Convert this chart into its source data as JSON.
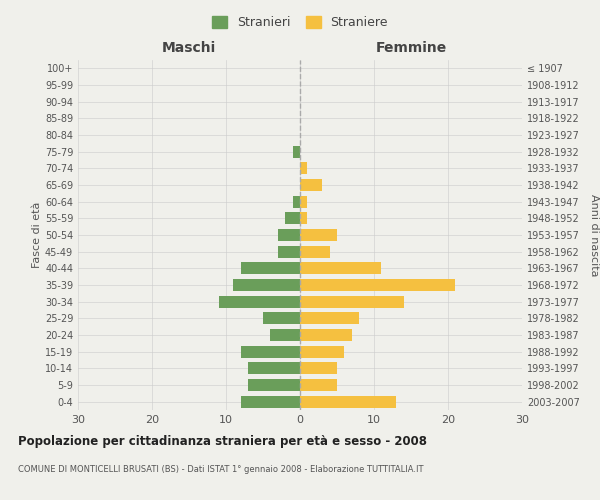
{
  "age_groups": [
    "100+",
    "95-99",
    "90-94",
    "85-89",
    "80-84",
    "75-79",
    "70-74",
    "65-69",
    "60-64",
    "55-59",
    "50-54",
    "45-49",
    "40-44",
    "35-39",
    "30-34",
    "25-29",
    "20-24",
    "15-19",
    "10-14",
    "5-9",
    "0-4"
  ],
  "birth_years": [
    "≤ 1907",
    "1908-1912",
    "1913-1917",
    "1918-1922",
    "1923-1927",
    "1928-1932",
    "1933-1937",
    "1938-1942",
    "1943-1947",
    "1948-1952",
    "1953-1957",
    "1958-1962",
    "1963-1967",
    "1968-1972",
    "1973-1977",
    "1978-1982",
    "1983-1987",
    "1988-1992",
    "1993-1997",
    "1998-2002",
    "2003-2007"
  ],
  "males": [
    0,
    0,
    0,
    0,
    0,
    1,
    0,
    0,
    1,
    2,
    3,
    3,
    8,
    9,
    11,
    5,
    4,
    8,
    7,
    7,
    8
  ],
  "females": [
    0,
    0,
    0,
    0,
    0,
    0,
    1,
    3,
    1,
    1,
    5,
    4,
    11,
    21,
    14,
    8,
    7,
    6,
    5,
    5,
    13
  ],
  "male_color": "#6a9e5a",
  "female_color": "#f5c040",
  "background_color": "#f0f0eb",
  "grid_color": "#cccccc",
  "title": "Popolazione per cittadinanza straniera per età e sesso - 2008",
  "subtitle": "COMUNE DI MONTICELLI BRUSATI (BS) - Dati ISTAT 1° gennaio 2008 - Elaborazione TUTTITALIA.IT",
  "ylabel_left": "Fasce di età",
  "ylabel_right": "Anni di nascita",
  "xlabel_left": "Maschi",
  "xlabel_right": "Femmine",
  "legend_male": "Stranieri",
  "legend_female": "Straniere",
  "xlim": 30,
  "dashed_line_color": "#aaaaaa"
}
